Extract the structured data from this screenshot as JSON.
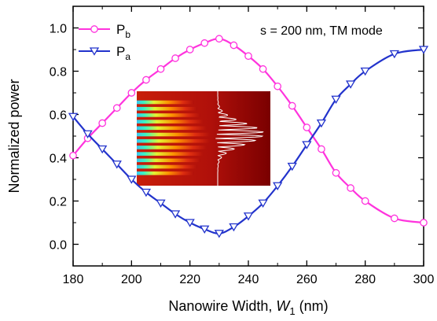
{
  "chart_data": {
    "type": "line",
    "xlabel_main": "Nanowire Width, ",
    "xlabel_var": "W",
    "xlabel_sub": "1",
    "xlabel_unit": " (nm)",
    "ylabel": "Normalized power",
    "annotation": "s = 200 nm, TM mode",
    "xlim": [
      180,
      300
    ],
    "ylim": [
      -0.1,
      1.1
    ],
    "xticks": [
      "180",
      "200",
      "220",
      "240",
      "260",
      "280",
      "300"
    ],
    "yticks": [
      "0.0",
      "0.2",
      "0.4",
      "0.6",
      "0.8",
      "1.0"
    ],
    "legend_placement": "top-left",
    "series": [
      {
        "name": "P",
        "sub": "b",
        "color": "#ff33dd",
        "marker": "circle",
        "x": [
          180,
          185,
          190,
          195,
          200,
          205,
          210,
          215,
          220,
          225,
          230,
          235,
          240,
          245,
          250,
          255,
          260,
          265,
          270,
          275,
          280,
          290,
          300
        ],
        "y": [
          0.41,
          0.49,
          0.56,
          0.63,
          0.7,
          0.76,
          0.81,
          0.86,
          0.9,
          0.93,
          0.95,
          0.92,
          0.87,
          0.81,
          0.73,
          0.64,
          0.54,
          0.44,
          0.33,
          0.26,
          0.2,
          0.12,
          0.1
        ]
      },
      {
        "name": "P",
        "sub": "a",
        "color": "#2233cc",
        "marker": "triangle-down",
        "x": [
          180,
          185,
          190,
          195,
          200,
          205,
          210,
          215,
          220,
          225,
          230,
          235,
          240,
          245,
          250,
          255,
          260,
          265,
          270,
          275,
          280,
          290,
          300
        ],
        "y": [
          0.59,
          0.51,
          0.44,
          0.37,
          0.3,
          0.24,
          0.19,
          0.14,
          0.1,
          0.07,
          0.05,
          0.08,
          0.13,
          0.19,
          0.27,
          0.36,
          0.46,
          0.56,
          0.67,
          0.74,
          0.8,
          0.88,
          0.9
        ]
      }
    ]
  }
}
